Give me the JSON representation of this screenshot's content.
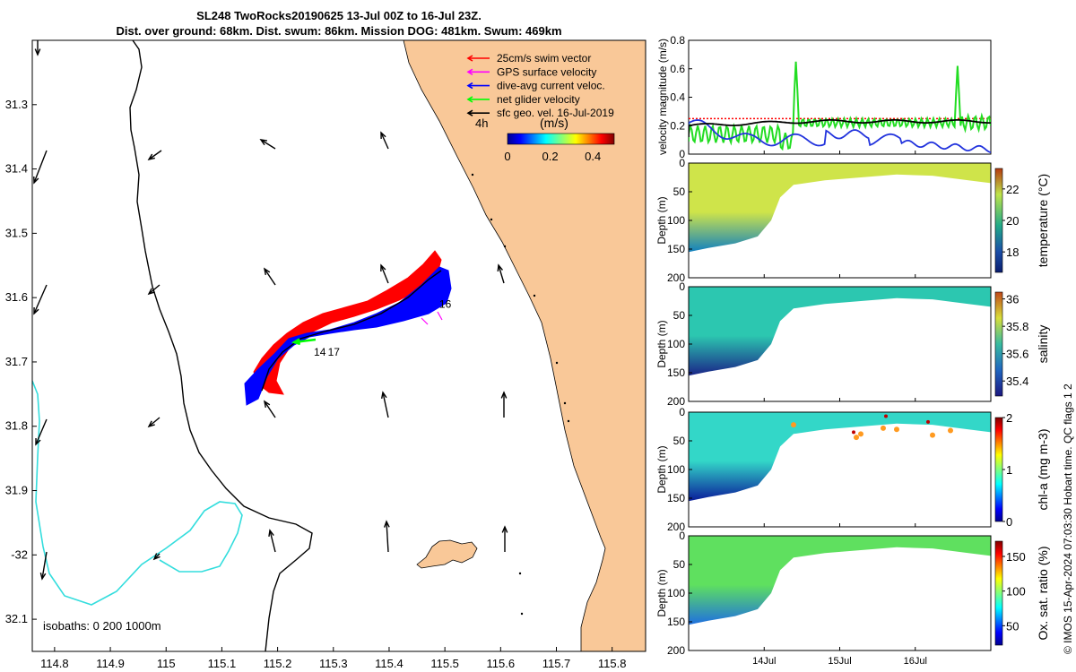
{
  "header": {
    "line1": "SL248 TwoRocks20190625 13-Jul 00Z to 16-Jul 23Z.",
    "line2": "Dist. over ground: 68km. Dist. swum: 86km. Mission DOG: 481km. Swum: 469km"
  },
  "map": {
    "xlim": [
      114.76,
      115.86
    ],
    "ylim": [
      -32.15,
      -31.2
    ],
    "x_ticks": [
      {
        "v": 114.8,
        "label": "114.8"
      },
      {
        "v": 114.9,
        "label": "114.9"
      },
      {
        "v": 115.0,
        "label": "115"
      },
      {
        "v": 115.1,
        "label": "115.1"
      },
      {
        "v": 115.2,
        "label": "115.2"
      },
      {
        "v": 115.3,
        "label": "115.3"
      },
      {
        "v": 115.4,
        "label": "115.4"
      },
      {
        "v": 115.5,
        "label": "115.5"
      },
      {
        "v": 115.6,
        "label": "115.6"
      },
      {
        "v": 115.7,
        "label": "115.7"
      },
      {
        "v": 115.8,
        "label": "115.8"
      }
    ],
    "y_ticks": [
      {
        "v": -31.3,
        "label": "31.3"
      },
      {
        "v": -31.4,
        "label": "31.4"
      },
      {
        "v": -31.5,
        "label": "31.5"
      },
      {
        "v": -31.6,
        "label": "31.6"
      },
      {
        "v": -31.7,
        "label": "31.7"
      },
      {
        "v": -31.8,
        "label": "31.8"
      },
      {
        "v": -31.9,
        "label": "31.9"
      },
      {
        "v": -32.0,
        "label": "-32"
      },
      {
        "v": -32.1,
        "label": "32.1"
      }
    ],
    "legend": [
      {
        "label": "25cm/s swim vector",
        "color": "#ff0000"
      },
      {
        "label": "GPS surface velocity",
        "color": "#ff00ff"
      },
      {
        "label": "dive-avg current veloc.",
        "color": "#0000ff"
      },
      {
        "label": "net glider velocity",
        "color": "#00ff00"
      },
      {
        "label": "sfc geo. vel. 16-Jul-2019",
        "color": "#000000"
      }
    ],
    "time_step_label": "4h",
    "colorbar_unit": "(m/s)",
    "colorbar_ticks": [
      {
        "v": 0,
        "label": "0"
      },
      {
        "v": 0.2,
        "label": "0.2"
      },
      {
        "v": 0.4,
        "label": "0.4"
      }
    ],
    "colorbar_range": [
      0,
      0.5
    ],
    "isobath_label": "isobaths: 0   200  1000m",
    "day_markers": [
      {
        "lon": 115.49,
        "lat": -31.61,
        "label": "16"
      },
      {
        "lon": 115.29,
        "lat": -31.685,
        "label": "17"
      },
      {
        "lon": 115.265,
        "lat": -31.685,
        "label": "14"
      }
    ],
    "land_color": "#f9c898",
    "isobath_200_color": "#000000",
    "isobath_1000_color": "#33dddd"
  },
  "panels": {
    "time_ticks": [
      {
        "t": 1.0,
        "label": "14Jul"
      },
      {
        "t": 2.0,
        "label": "15Jul"
      },
      {
        "t": 3.0,
        "label": "16Jul"
      }
    ],
    "time_range": [
      0,
      4.0
    ],
    "velocity": {
      "ylabel": "velocity magnitude (m/s)",
      "ylim": [
        0,
        0.8
      ],
      "y_ticks": [
        {
          "v": 0,
          "label": "0"
        },
        {
          "v": 0.2,
          "label": "0.2"
        },
        {
          "v": 0.4,
          "label": "0.4"
        },
        {
          "v": 0.6,
          "label": "0.6"
        },
        {
          "v": 0.8,
          "label": "0.8"
        }
      ]
    },
    "sections": [
      {
        "key": "temperature",
        "ylabel": "Depth (m)",
        "cblabel": "temperature (°C)",
        "cb_ticks": [
          {
            "v": 18,
            "label": "18"
          },
          {
            "v": 20,
            "label": "20"
          },
          {
            "v": 22,
            "label": "22"
          }
        ],
        "cb_range": [
          16.7,
          23.3
        ],
        "colormap": "thermal"
      },
      {
        "key": "salinity",
        "ylabel": "Depth (m)",
        "cblabel": "salinity",
        "cb_ticks": [
          {
            "v": 35.4,
            "label": "35.4"
          },
          {
            "v": 35.6,
            "label": "35.6"
          },
          {
            "v": 35.8,
            "label": "35.8"
          },
          {
            "v": 36,
            "label": "36"
          }
        ],
        "cb_range": [
          35.29,
          36.05
        ],
        "colormap": "haline"
      },
      {
        "key": "chla",
        "ylabel": "Depth (m)",
        "cblabel": "chl-a (mg m-3)",
        "cb_ticks": [
          {
            "v": 0,
            "label": "0"
          },
          {
            "v": 1,
            "label": "1"
          },
          {
            "v": 2,
            "label": "2"
          }
        ],
        "cb_range": [
          0,
          2
        ],
        "colormap": "jet"
      },
      {
        "key": "oxygen",
        "ylabel": "Depth (m)",
        "cblabel": "Ox. sat. ratio (%)",
        "cb_ticks": [
          {
            "v": 50,
            "label": "50"
          },
          {
            "v": 100,
            "label": "100"
          },
          {
            "v": 150,
            "label": "150"
          }
        ],
        "cb_range": [
          22,
          172
        ],
        "colormap": "jet"
      }
    ],
    "depth_ticks": [
      {
        "v": 0,
        "label": "0"
      },
      {
        "v": 50,
        "label": "50"
      },
      {
        "v": 100,
        "label": "100"
      },
      {
        "v": 150,
        "label": "150"
      },
      {
        "v": 200,
        "label": "200"
      }
    ],
    "depth_range": [
      0,
      200
    ]
  },
  "credit": "© IMOS 15-Apr-2024 07:03:30 Hobart time. QC flags 1  2"
}
